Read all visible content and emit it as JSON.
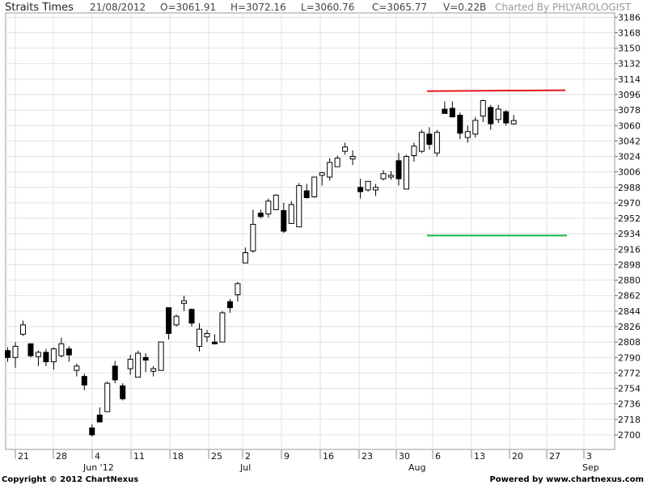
{
  "header": {
    "title": "Straits Times",
    "date": "21/08/2012",
    "open": "O=3061.91",
    "high": "H=3072.16",
    "low": "L=3060.76",
    "close": "C=3065.77",
    "volume": "V=0.22B",
    "credit": "Charted By PHLYAROLOGIST"
  },
  "footer": {
    "copyright": "Copyright © 2012 ChartNexus",
    "powered": "Powered by www.chartnexus.com"
  },
  "chart_data": {
    "type": "candlestick",
    "y_ticks": [
      3186,
      3168,
      3150,
      3132,
      3114,
      3096,
      3078,
      3060,
      3042,
      3024,
      3006,
      2988,
      2970,
      2952,
      2934,
      2916,
      2898,
      2880,
      2862,
      2844,
      2826,
      2808,
      2790,
      2772,
      2754,
      2736,
      2718,
      2700
    ],
    "ylim": [
      2683,
      3191
    ],
    "x_tick_labels": [
      "21",
      "28",
      "4",
      "11",
      "18",
      "25",
      "2",
      "9",
      "16",
      "23",
      "30",
      "6",
      "13",
      "20",
      "27",
      "3"
    ],
    "month_labels": [
      "Jun '12",
      "Jul",
      "Aug",
      "Sep"
    ],
    "grid": true,
    "candles": [
      {
        "o": 2798,
        "h": 2802,
        "l": 2785,
        "c": 2790
      },
      {
        "o": 2790,
        "h": 2808,
        "l": 2778,
        "c": 2803
      },
      {
        "o": 2817,
        "h": 2833,
        "l": 2815,
        "c": 2828
      },
      {
        "o": 2806,
        "h": 2806,
        "l": 2790,
        "c": 2792
      },
      {
        "o": 2791,
        "h": 2798,
        "l": 2780,
        "c": 2796
      },
      {
        "o": 2796,
        "h": 2800,
        "l": 2780,
        "c": 2785
      },
      {
        "o": 2785,
        "h": 2802,
        "l": 2776,
        "c": 2800
      },
      {
        "o": 2792,
        "h": 2813,
        "l": 2790,
        "c": 2806
      },
      {
        "o": 2800,
        "h": 2803,
        "l": 2785,
        "c": 2793
      },
      {
        "o": 2775,
        "h": 2783,
        "l": 2768,
        "c": 2780
      },
      {
        "o": 2768,
        "h": 2771,
        "l": 2752,
        "c": 2758
      },
      {
        "o": 2708,
        "h": 2712,
        "l": 2698,
        "c": 2700
      },
      {
        "o": 2723,
        "h": 2732,
        "l": 2716,
        "c": 2715
      },
      {
        "o": 2727,
        "h": 2762,
        "l": 2727,
        "c": 2760
      },
      {
        "o": 2780,
        "h": 2786,
        "l": 2760,
        "c": 2764
      },
      {
        "o": 2757,
        "h": 2760,
        "l": 2740,
        "c": 2742
      },
      {
        "o": 2777,
        "h": 2793,
        "l": 2770,
        "c": 2788
      },
      {
        "o": 2767,
        "h": 2798,
        "l": 2767,
        "c": 2795
      },
      {
        "o": 2790,
        "h": 2795,
        "l": 2773,
        "c": 2787
      },
      {
        "o": 2774,
        "h": 2780,
        "l": 2768,
        "c": 2777
      },
      {
        "o": 2775,
        "h": 2808,
        "l": 2775,
        "c": 2808
      },
      {
        "o": 2848,
        "h": 2848,
        "l": 2811,
        "c": 2818
      },
      {
        "o": 2828,
        "h": 2840,
        "l": 2826,
        "c": 2838
      },
      {
        "o": 2853,
        "h": 2862,
        "l": 2844,
        "c": 2856
      },
      {
        "o": 2846,
        "h": 2847,
        "l": 2826,
        "c": 2830
      },
      {
        "o": 2803,
        "h": 2830,
        "l": 2797,
        "c": 2823
      },
      {
        "o": 2814,
        "h": 2822,
        "l": 2808,
        "c": 2818
      },
      {
        "o": 2808,
        "h": 2817,
        "l": 2805,
        "c": 2806
      },
      {
        "o": 2808,
        "h": 2844,
        "l": 2808,
        "c": 2842
      },
      {
        "o": 2855,
        "h": 2858,
        "l": 2842,
        "c": 2848
      },
      {
        "o": 2863,
        "h": 2878,
        "l": 2855,
        "c": 2876
      },
      {
        "o": 2900,
        "h": 2918,
        "l": 2900,
        "c": 2912
      },
      {
        "o": 2914,
        "h": 2962,
        "l": 2912,
        "c": 2945
      },
      {
        "o": 2958,
        "h": 2962,
        "l": 2952,
        "c": 2954
      },
      {
        "o": 2957,
        "h": 2975,
        "l": 2953,
        "c": 2972
      },
      {
        "o": 2962,
        "h": 2980,
        "l": 2962,
        "c": 2979
      },
      {
        "o": 2961,
        "h": 2970,
        "l": 2935,
        "c": 2937
      },
      {
        "o": 2946,
        "h": 2972,
        "l": 2946,
        "c": 2968
      },
      {
        "o": 2942,
        "h": 2993,
        "l": 2942,
        "c": 2990
      },
      {
        "o": 2984,
        "h": 2992,
        "l": 2975,
        "c": 2976
      },
      {
        "o": 2977,
        "h": 3000,
        "l": 2976,
        "c": 3000
      },
      {
        "o": 3002,
        "h": 3006,
        "l": 2990,
        "c": 3005
      },
      {
        "o": 3000,
        "h": 3022,
        "l": 2996,
        "c": 3017
      },
      {
        "o": 3012,
        "h": 3025,
        "l": 3012,
        "c": 3022
      },
      {
        "o": 3030,
        "h": 3040,
        "l": 3026,
        "c": 3035
      },
      {
        "o": 3021,
        "h": 3031,
        "l": 3014,
        "c": 3024
      },
      {
        "o": 2988,
        "h": 2998,
        "l": 2975,
        "c": 2983
      },
      {
        "o": 2985,
        "h": 2995,
        "l": 2983,
        "c": 2995
      },
      {
        "o": 2985,
        "h": 2992,
        "l": 2978,
        "c": 2988
      },
      {
        "o": 2998,
        "h": 3008,
        "l": 2996,
        "c": 3004
      },
      {
        "o": 3000,
        "h": 3007,
        "l": 2997,
        "c": 3002
      },
      {
        "o": 3019,
        "h": 3028,
        "l": 2990,
        "c": 2998
      },
      {
        "o": 2986,
        "h": 3026,
        "l": 2986,
        "c": 3024
      },
      {
        "o": 3025,
        "h": 3040,
        "l": 3018,
        "c": 3036
      },
      {
        "o": 3030,
        "h": 3055,
        "l": 3028,
        "c": 3052
      },
      {
        "o": 3050,
        "h": 3058,
        "l": 3032,
        "c": 3038
      },
      {
        "o": 3028,
        "h": 3055,
        "l": 3024,
        "c": 3052
      },
      {
        "o": 3079,
        "h": 3088,
        "l": 3074,
        "c": 3074
      },
      {
        "o": 3080,
        "h": 3088,
        "l": 3070,
        "c": 3070
      },
      {
        "o": 3072,
        "h": 3075,
        "l": 3044,
        "c": 3051
      },
      {
        "o": 3046,
        "h": 3060,
        "l": 3040,
        "c": 3053
      },
      {
        "o": 3050,
        "h": 3070,
        "l": 3046,
        "c": 3066
      },
      {
        "o": 3071,
        "h": 3090,
        "l": 3064,
        "c": 3089
      },
      {
        "o": 3081,
        "h": 3084,
        "l": 3055,
        "c": 3062
      },
      {
        "o": 3067,
        "h": 3084,
        "l": 3063,
        "c": 3079
      },
      {
        "o": 3076,
        "h": 3078,
        "l": 3060,
        "c": 3063
      },
      {
        "o": 3061.91,
        "h": 3072.16,
        "l": 3060.76,
        "c": 3065.77
      }
    ],
    "trendlines": [
      {
        "name": "resistance",
        "color": "#e8141c",
        "x1": 528,
        "x2": 699,
        "y1": 3100,
        "y2": 3101
      },
      {
        "name": "support",
        "color": "#15b94a",
        "x1": 528,
        "x2": 701,
        "y1": 2932,
        "y2": 2932
      }
    ]
  }
}
